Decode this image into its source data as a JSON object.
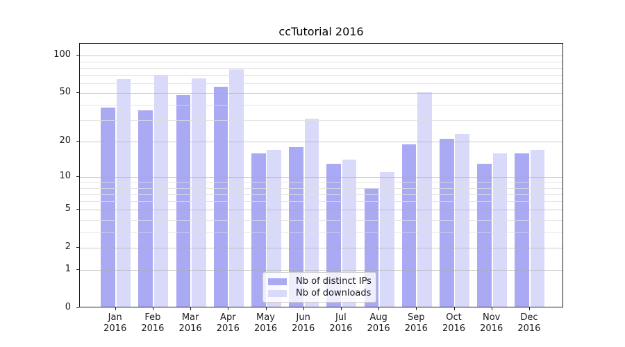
{
  "chart_data": {
    "type": "bar",
    "title": "ccTutorial 2016",
    "categories": [
      "Jan",
      "Feb",
      "Mar",
      "Apr",
      "May",
      "Jun",
      "Jul",
      "Aug",
      "Sep",
      "Oct",
      "Nov",
      "Dec"
    ],
    "category_sublabel": "2016",
    "series": [
      {
        "name": "Nb of distinct IPs",
        "color": "#a9a9f4",
        "values": [
          38,
          36,
          48,
          56,
          16,
          18,
          13,
          8,
          19,
          21,
          13,
          16
        ]
      },
      {
        "name": "Nb of downloads",
        "color": "#d9d9fa",
        "values": [
          65,
          70,
          66,
          78,
          17,
          31,
          14,
          11,
          51,
          23,
          16,
          17
        ]
      }
    ],
    "y_axis": {
      "scale": "log1p",
      "major_ticks": [
        0,
        1,
        2,
        5,
        10,
        20,
        50,
        100
      ],
      "minor_gridlines": [
        3,
        4,
        6,
        7,
        8,
        9,
        30,
        40,
        60,
        70,
        80,
        90
      ],
      "range": [
        0,
        125
      ]
    },
    "grid": "horizontal",
    "legend": {
      "position": "lower-center"
    }
  },
  "colors": {
    "background": "#ffffff",
    "spine": "#1a1a1a",
    "major_grid": "#adadad",
    "minor_grid": "#dedede",
    "text": "#1a1a1a"
  }
}
